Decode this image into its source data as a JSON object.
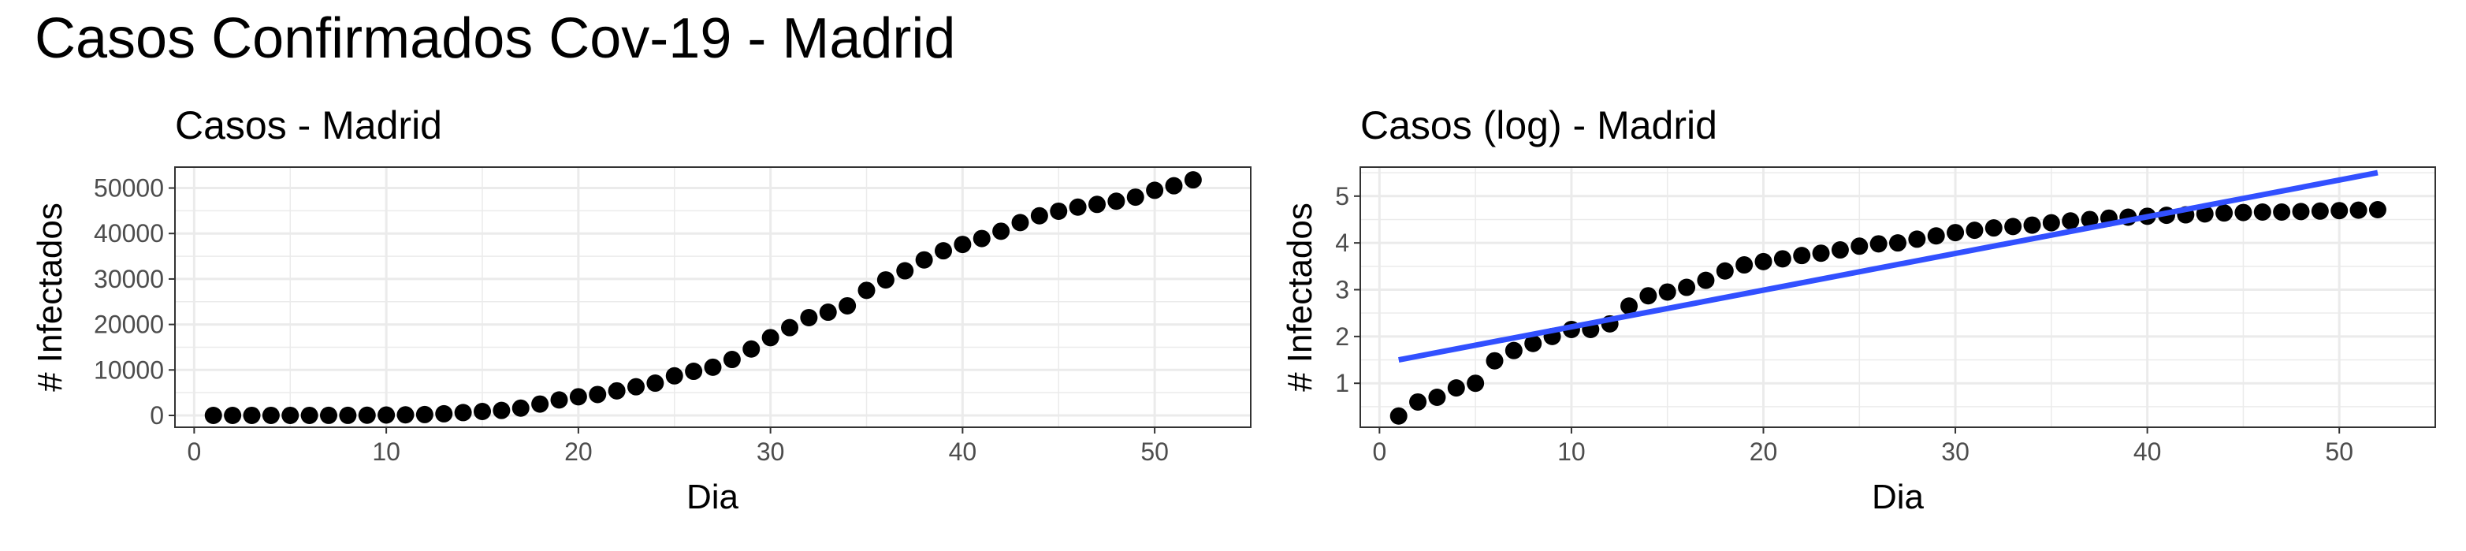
{
  "page": {
    "title": "Casos Confirmados Cov-19 - Madrid"
  },
  "colors": {
    "points": "#000000",
    "fit_line": "#3250FF",
    "grid": "#EBEBEB",
    "panel_border": "#333333",
    "tick_label": "#4D4D4D"
  },
  "chart_data": [
    {
      "type": "scatter",
      "title": "Casos - Madrid",
      "xlabel": "Dia",
      "ylabel": "# Infectados",
      "xlim": [
        -1,
        55
      ],
      "ylim": [
        -2600,
        54600
      ],
      "x_ticks": [
        0,
        10,
        20,
        30,
        40,
        50
      ],
      "y_ticks": [
        0,
        10000,
        20000,
        30000,
        40000,
        50000
      ],
      "grid": true,
      "legend": "none",
      "series": [
        {
          "x": [
            1,
            2,
            3,
            4,
            5,
            6,
            7,
            8,
            9,
            10,
            11,
            12,
            13,
            14,
            15,
            16,
            17,
            18,
            19,
            20,
            21,
            22,
            23,
            24,
            25,
            26,
            27,
            28,
            29,
            30,
            31,
            32,
            33,
            34,
            35,
            36,
            37,
            38,
            39,
            40,
            41,
            42,
            43,
            44,
            45,
            46,
            47,
            48,
            49,
            50,
            51,
            52
          ],
          "y": [
            2,
            4,
            5,
            8,
            10,
            10,
            12,
            14,
            40,
            90,
            134,
            190,
            360,
            620,
            870,
            1100,
            1600,
            2500,
            3400,
            4100,
            4600,
            5400,
            6300,
            7100,
            8700,
            9700,
            10600,
            12300,
            14600,
            17100,
            19300,
            21500,
            22700,
            24100,
            27500,
            29800,
            31800,
            34200,
            36200,
            37600,
            38900,
            40500,
            42400,
            43900,
            44900,
            45800,
            46400,
            47100,
            48000,
            49500,
            50500,
            51800
          ]
        }
      ]
    },
    {
      "type": "scatter",
      "title": "Casos (log) - Madrid",
      "xlabel": "Dia",
      "ylabel": "# Infectados",
      "xlim": [
        -1,
        55
      ],
      "ylim": [
        0.06,
        5.62
      ],
      "x_ticks": [
        0,
        10,
        20,
        30,
        40,
        50
      ],
      "y_ticks": [
        1,
        2,
        3,
        4,
        5
      ],
      "grid": true,
      "legend": "none",
      "series": [
        {
          "x": [
            1,
            2,
            3,
            4,
            5,
            6,
            7,
            8,
            9,
            10,
            11,
            12,
            13,
            14,
            15,
            16,
            17,
            18,
            19,
            20,
            21,
            22,
            23,
            24,
            25,
            26,
            27,
            28,
            29,
            30,
            31,
            32,
            33,
            34,
            35,
            36,
            37,
            38,
            39,
            40,
            41,
            42,
            43,
            44,
            45,
            46,
            47,
            48,
            49,
            50,
            51,
            52
          ],
          "y": [
            0.3,
            0.6,
            0.7,
            0.9,
            1.0,
            1.48,
            1.7,
            1.85,
            2.0,
            2.15,
            2.15,
            2.27,
            2.65,
            2.87,
            2.95,
            3.05,
            3.2,
            3.4,
            3.53,
            3.6,
            3.66,
            3.73,
            3.78,
            3.85,
            3.93,
            3.98,
            4.0,
            4.08,
            4.15,
            4.22,
            4.27,
            4.32,
            4.35,
            4.38,
            4.43,
            4.47,
            4.5,
            4.53,
            4.55,
            4.57,
            4.59,
            4.6,
            4.62,
            4.64,
            4.65,
            4.66,
            4.66,
            4.67,
            4.68,
            4.69,
            4.7,
            4.71
          ]
        }
      ],
      "fit_line": {
        "x": [
          1,
          52
        ],
        "y": [
          1.5,
          5.5
        ]
      }
    }
  ]
}
